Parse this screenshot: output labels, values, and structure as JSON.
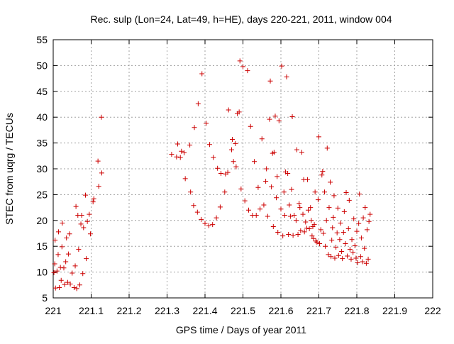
{
  "chart_data": {
    "type": "scatter",
    "title": "Rec. sulp (Lon=24, Lat=49, h=HE), days 220-221, 2011, window 004",
    "xlabel": "GPS time / Days of year 2011",
    "ylabel": "STEC from uqrg / TECUs",
    "xlim": [
      221,
      222
    ],
    "ylim": [
      5,
      55
    ],
    "x_ticks": [
      "221",
      "221.1",
      "221.2",
      "221.3",
      "221.4",
      "221.5",
      "221.6",
      "221.7",
      "221.8",
      "221.9",
      "222"
    ],
    "x_tick_values": [
      221,
      221.1,
      221.2,
      221.3,
      221.4,
      221.5,
      221.6,
      221.7,
      221.8,
      221.9,
      222
    ],
    "y_ticks": [
      "5",
      "10",
      "15",
      "20",
      "25",
      "30",
      "35",
      "40",
      "45",
      "50",
      "55"
    ],
    "y_tick_values": [
      5,
      10,
      15,
      20,
      25,
      30,
      35,
      40,
      45,
      50,
      55
    ],
    "grid": true,
    "legend": "none",
    "marker": "plus",
    "color": "#cc0000",
    "points": [
      [
        221.002,
        9.9
      ],
      [
        221.004,
        11.6
      ],
      [
        221.005,
        16.2
      ],
      [
        221.006,
        6.9
      ],
      [
        221.01,
        10.2
      ],
      [
        221.013,
        13.4
      ],
      [
        221.014,
        17.8
      ],
      [
        221.016,
        7.0
      ],
      [
        221.019,
        10.9
      ],
      [
        221.021,
        8.4
      ],
      [
        221.023,
        14.9
      ],
      [
        221.024,
        19.5
      ],
      [
        221.028,
        10.8
      ],
      [
        221.03,
        7.6
      ],
      [
        221.033,
        12.0
      ],
      [
        221.035,
        16.6
      ],
      [
        221.038,
        8.0
      ],
      [
        221.04,
        13.5
      ],
      [
        221.043,
        17.4
      ],
      [
        221.045,
        7.7
      ],
      [
        221.05,
        9.8
      ],
      [
        221.055,
        7.0
      ],
      [
        221.058,
        11.2
      ],
      [
        221.06,
        22.7
      ],
      [
        221.062,
        6.8
      ],
      [
        221.065,
        21.0
      ],
      [
        221.067,
        14.4
      ],
      [
        221.07,
        7.5
      ],
      [
        221.073,
        19.3
      ],
      [
        221.075,
        21.0
      ],
      [
        221.078,
        9.7
      ],
      [
        221.08,
        18.6
      ],
      [
        221.085,
        24.9
      ],
      [
        221.087,
        12.6
      ],
      [
        221.09,
        19.8
      ],
      [
        221.095,
        21.2
      ],
      [
        221.098,
        17.4
      ],
      [
        221.105,
        23.6
      ],
      [
        221.107,
        24.2
      ],
      [
        221.118,
        31.5
      ],
      [
        221.12,
        26.6
      ],
      [
        221.127,
        40.0
      ],
      [
        221.128,
        29.2
      ],
      [
        221.312,
        32.8
      ],
      [
        221.325,
        32.3
      ],
      [
        221.328,
        34.8
      ],
      [
        221.335,
        32.2
      ],
      [
        221.338,
        33.4
      ],
      [
        221.345,
        33.1
      ],
      [
        221.348,
        28.1
      ],
      [
        221.36,
        34.6
      ],
      [
        221.362,
        25.5
      ],
      [
        221.37,
        22.9
      ],
      [
        221.372,
        38.0
      ],
      [
        221.38,
        21.6
      ],
      [
        221.382,
        42.6
      ],
      [
        221.39,
        20.2
      ],
      [
        221.392,
        48.4
      ],
      [
        221.4,
        19.4
      ],
      [
        221.403,
        38.8
      ],
      [
        221.41,
        19.0
      ],
      [
        221.412,
        34.7
      ],
      [
        221.42,
        19.2
      ],
      [
        221.422,
        32.2
      ],
      [
        221.43,
        20.5
      ],
      [
        221.433,
        30.1
      ],
      [
        221.44,
        22.6
      ],
      [
        221.442,
        29.1
      ],
      [
        221.452,
        25.5
      ],
      [
        221.454,
        29.0
      ],
      [
        221.46,
        29.3
      ],
      [
        221.462,
        41.4
      ],
      [
        221.47,
        33.7
      ],
      [
        221.472,
        35.7
      ],
      [
        221.475,
        31.4
      ],
      [
        221.48,
        34.9
      ],
      [
        221.482,
        30.4
      ],
      [
        221.485,
        40.7
      ],
      [
        221.49,
        41.0
      ],
      [
        221.492,
        50.9
      ],
      [
        221.495,
        26.1
      ],
      [
        221.5,
        49.8
      ],
      [
        221.505,
        23.8
      ],
      [
        221.512,
        49.0
      ],
      [
        221.515,
        22.0
      ],
      [
        221.52,
        38.2
      ],
      [
        221.525,
        21.0
      ],
      [
        221.53,
        31.4
      ],
      [
        221.535,
        21.0
      ],
      [
        221.54,
        26.4
      ],
      [
        221.545,
        22.2
      ],
      [
        221.55,
        35.8
      ],
      [
        221.555,
        23.0
      ],
      [
        221.56,
        27.6
      ],
      [
        221.562,
        30.0
      ],
      [
        221.565,
        20.8
      ],
      [
        221.57,
        39.6
      ],
      [
        221.572,
        47.0
      ],
      [
        221.575,
        26.5
      ],
      [
        221.578,
        33.0
      ],
      [
        221.58,
        18.8
      ],
      [
        221.582,
        33.2
      ],
      [
        221.585,
        40.2
      ],
      [
        221.588,
        24.4
      ],
      [
        221.59,
        28.5
      ],
      [
        221.592,
        17.7
      ],
      [
        221.595,
        39.3
      ],
      [
        221.6,
        22.2
      ],
      [
        221.602,
        49.9
      ],
      [
        221.605,
        17.0
      ],
      [
        221.608,
        25.5
      ],
      [
        221.61,
        21.0
      ],
      [
        221.612,
        29.4
      ],
      [
        221.615,
        47.8
      ],
      [
        221.618,
        29.1
      ],
      [
        221.62,
        17.3
      ],
      [
        221.622,
        23.0
      ],
      [
        221.625,
        20.8
      ],
      [
        221.628,
        26.0
      ],
      [
        221.63,
        40.1
      ],
      [
        221.632,
        17.1
      ],
      [
        221.635,
        21.0
      ],
      [
        221.64,
        20.0
      ],
      [
        221.642,
        33.7
      ],
      [
        221.645,
        17.3
      ],
      [
        221.648,
        23.3
      ],
      [
        221.65,
        22.5
      ],
      [
        221.652,
        18.0
      ],
      [
        221.655,
        33.2
      ],
      [
        221.658,
        21.2
      ],
      [
        221.66,
        27.9
      ],
      [
        221.662,
        17.8
      ],
      [
        221.665,
        19.7
      ],
      [
        221.668,
        18.5
      ],
      [
        221.67,
        27.9
      ],
      [
        221.672,
        22.0
      ],
      [
        221.675,
        18.4
      ],
      [
        221.678,
        22.5
      ],
      [
        221.68,
        20.0
      ],
      [
        221.682,
        17.0
      ],
      [
        221.684,
        18.8
      ],
      [
        221.686,
        16.5
      ],
      [
        221.688,
        19.2
      ],
      [
        221.69,
        25.5
      ],
      [
        221.692,
        16.0
      ],
      [
        221.695,
        15.8
      ],
      [
        221.698,
        24.0
      ],
      [
        221.7,
        36.2
      ],
      [
        221.702,
        15.5
      ],
      [
        221.705,
        18.2
      ],
      [
        221.708,
        28.8
      ],
      [
        221.71,
        29.5
      ],
      [
        221.712,
        17.5
      ],
      [
        221.715,
        25.5
      ],
      [
        221.717,
        15.0
      ],
      [
        221.72,
        20.0
      ],
      [
        221.722,
        34.0
      ],
      [
        221.725,
        13.4
      ],
      [
        221.727,
        22.5
      ],
      [
        221.73,
        27.4
      ],
      [
        221.732,
        13.0
      ],
      [
        221.734,
        16.2
      ],
      [
        221.736,
        18.6
      ],
      [
        221.738,
        20.6
      ],
      [
        221.74,
        24.8
      ],
      [
        221.742,
        12.7
      ],
      [
        221.745,
        14.8
      ],
      [
        221.748,
        17.6
      ],
      [
        221.75,
        22.4
      ],
      [
        221.752,
        13.2
      ],
      [
        221.755,
        16.3
      ],
      [
        221.757,
        19.5
      ],
      [
        221.76,
        14.0
      ],
      [
        221.762,
        12.6
      ],
      [
        221.765,
        17.7
      ],
      [
        221.767,
        21.7
      ],
      [
        221.77,
        15.5
      ],
      [
        221.772,
        25.4
      ],
      [
        221.775,
        13.1
      ],
      [
        221.778,
        18.4
      ],
      [
        221.78,
        23.9
      ],
      [
        221.782,
        14.4
      ],
      [
        221.785,
        12.5
      ],
      [
        221.787,
        16.3
      ],
      [
        221.79,
        13.8
      ],
      [
        221.792,
        20.3
      ],
      [
        221.795,
        15.1
      ],
      [
        221.798,
        12.7
      ],
      [
        221.8,
        17.9
      ],
      [
        221.802,
        11.8
      ],
      [
        221.805,
        19.4
      ],
      [
        221.807,
        25.1
      ],
      [
        221.81,
        13.0
      ],
      [
        221.812,
        16.6
      ],
      [
        221.815,
        12.0
      ],
      [
        221.817,
        20.5
      ],
      [
        221.82,
        14.6
      ],
      [
        221.822,
        22.5
      ],
      [
        221.825,
        11.7
      ],
      [
        221.827,
        18.2
      ],
      [
        221.83,
        12.5
      ],
      [
        221.832,
        19.8
      ],
      [
        221.835,
        21.2
      ]
    ]
  }
}
